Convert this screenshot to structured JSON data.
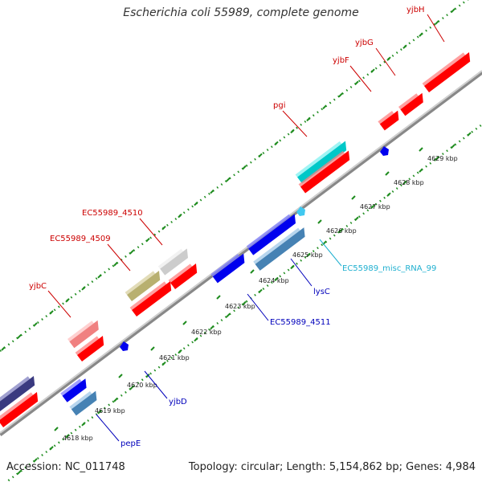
{
  "title": "Escherichia coli 55989, complete genome",
  "footer": {
    "accession": "Accession: NC_011748",
    "info": "Topology: circular; Length: 5,154,862 bp; Genes: 4,984"
  },
  "colors": {
    "red_gene": "#ff0000",
    "blue_gene": "#0000ee",
    "steel_gene": "#4682b4",
    "cyan_gene": "#00c8c8",
    "label_red": "#cc0000",
    "label_blue": "#0000bb",
    "label_cyan": "#20b0d0",
    "tick_green": "#1e8c1e"
  },
  "ticks": [
    "4618 kbp",
    "4619 kbp",
    "4620 kbp",
    "4621 kbp",
    "4622 kbp",
    "4623 kbp",
    "4624 kbp",
    "4625 kbp",
    "4626 kbp",
    "4627 kbp",
    "4628 kbp",
    "4629 kbp"
  ],
  "labels": {
    "yjbH": "yjbH",
    "yjbG": "yjbG",
    "yjbF": "yjbF",
    "pgi": "pgi",
    "ec4510": "EC55989_4510",
    "ec4509": "EC55989_4509",
    "yjbC": "yjbC",
    "lysC": "lysC",
    "misc": "EC55989_misc_RNA_99",
    "ec4511": "EC55989_4511",
    "yjbD": "yjbD",
    "pepE": "pepE"
  }
}
